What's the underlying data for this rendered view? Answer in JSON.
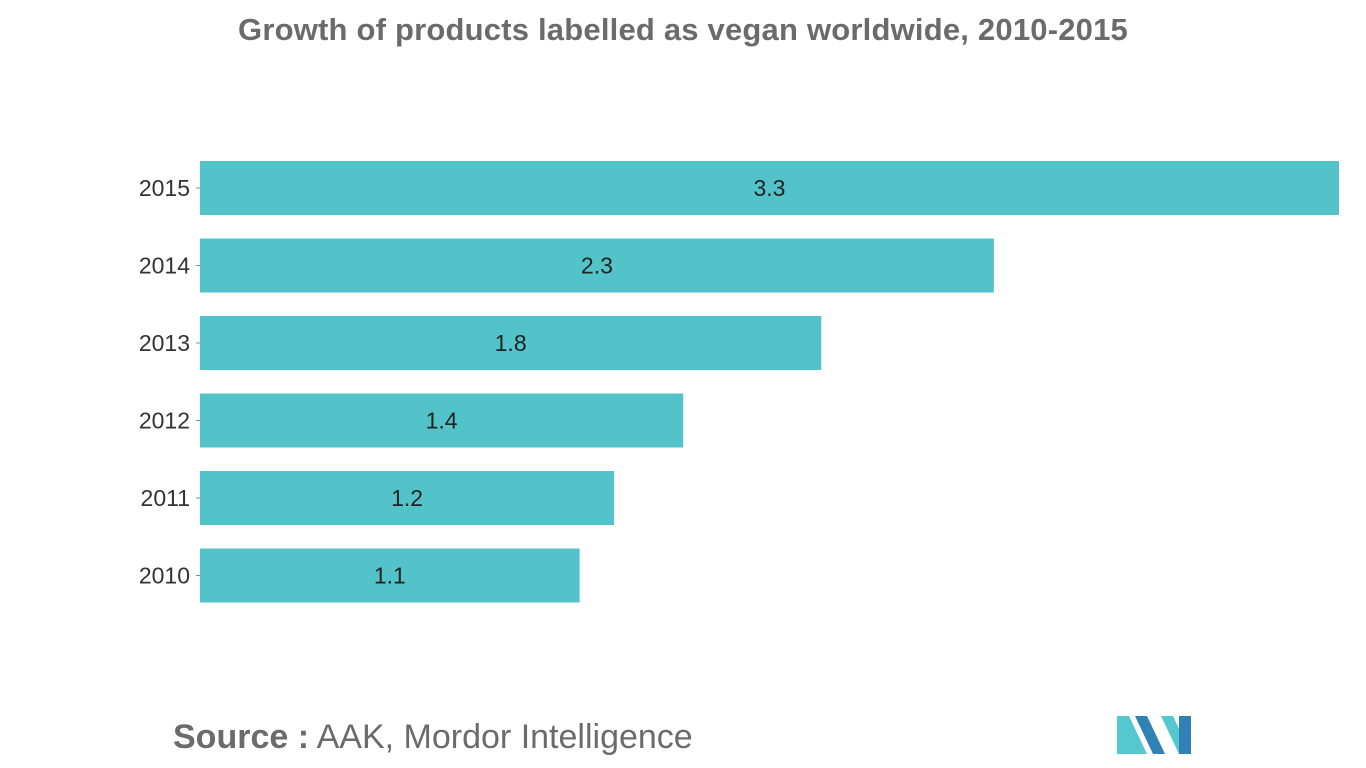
{
  "chart_data": {
    "type": "bar",
    "orientation": "horizontal",
    "title": "Growth of products labelled as vegan worldwide, 2010-2015",
    "categories": [
      "2015",
      "2014",
      "2013",
      "2012",
      "2011",
      "2010"
    ],
    "values": [
      3.3,
      2.3,
      1.8,
      1.4,
      1.2,
      1.1
    ],
    "data_labels": [
      "3.3",
      "2.3",
      "1.8",
      "1.4",
      "1.2",
      "1.1"
    ],
    "xlim": [
      0,
      3.3
    ],
    "grid": false,
    "legend": "none",
    "bar_color": "#52c4c9"
  },
  "source": {
    "prefix": "Source :",
    "text": "AAK, Mordor Intelligence"
  },
  "logo": {
    "icon": "mordor-intelligence-logo-icon",
    "colors": [
      "#2f82b3",
      "#55c8cf"
    ]
  }
}
